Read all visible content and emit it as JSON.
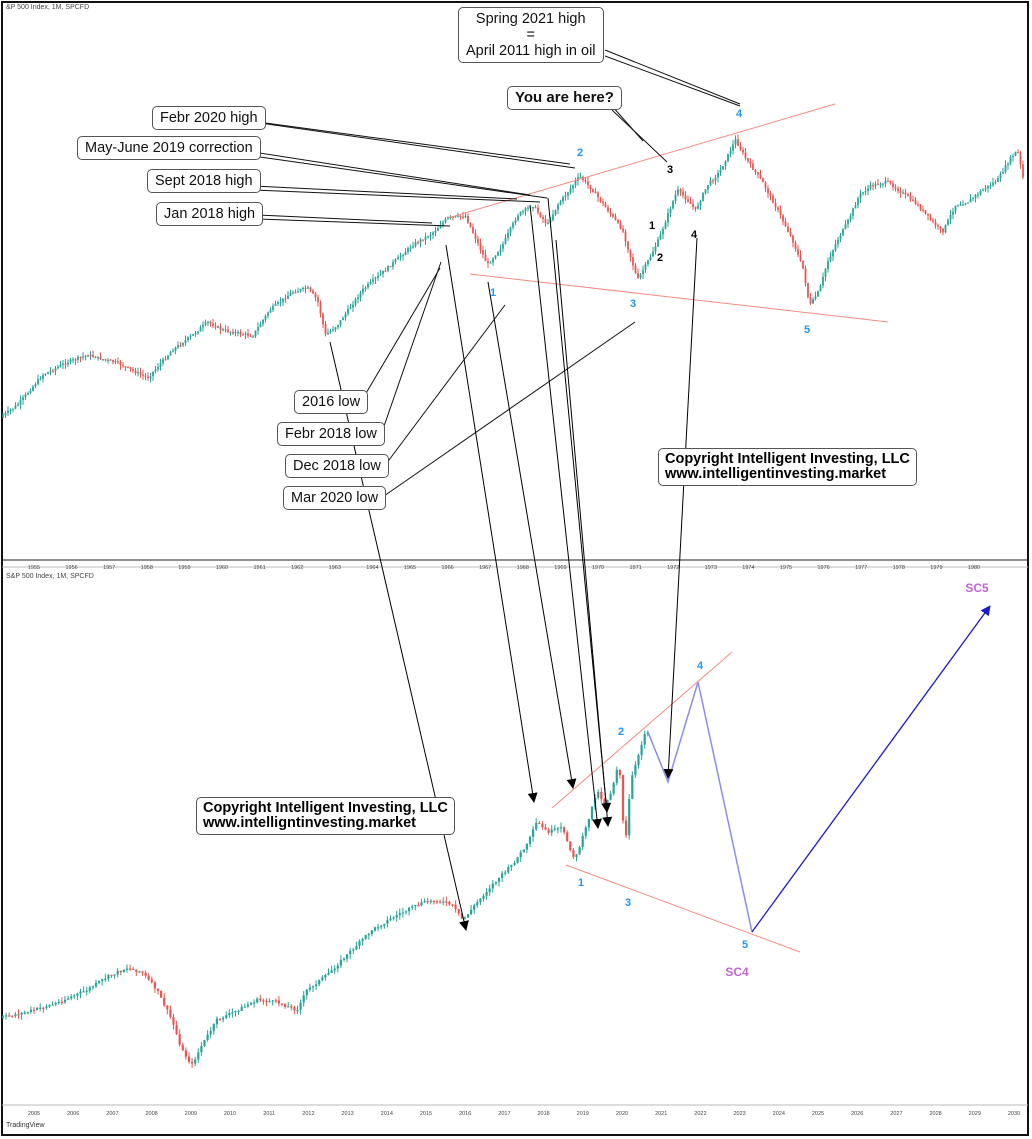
{
  "charts_header": {
    "top": "&P 500 Index, 1M, SPCFD",
    "bottom": "S&P 500 Index, 1M, SPCFD",
    "footer_logo": "TradingView"
  },
  "callouts": {
    "spring_2021_line1": "Spring 2021 high",
    "spring_2021_line2": "=",
    "spring_2021_line3": "April 2011 high in oil",
    "you_are_here": "You are here?",
    "febr_2020_high": "Febr 2020 high",
    "may_june_2019": "May-June 2019 correction",
    "sept_2018_high": "Sept 2018 high",
    "jan_2018_high": "Jan 2018 high",
    "low_2016": "2016 low",
    "febr_2018_low": "Febr 2018 low",
    "dec_2018_low": "Dec 2018 low",
    "mar_2020_low": "Mar 2020 low"
  },
  "copyright": {
    "top_line1": "Copyright Intelligent Investing, LLC",
    "top_line2": "www.intelligentinvesting.market",
    "bottom_line1": "Copyright Intelligent Investing, LLC",
    "bottom_line2": "www.intelligntinvesting.market"
  },
  "colors": {
    "up": "#26a69a",
    "down": "#ef5350",
    "trendline": "#f28b82",
    "wave_label": "#2196f3",
    "sc_label": "#c264d6",
    "projection": "#8c8cf0",
    "sc5_arrow": "#1a1acc"
  },
  "chart_data": [
    {
      "type": "candlestick",
      "title": "S&P 500 Index, 1M",
      "x_tick_labels": [
        "1955",
        "1956",
        "1957",
        "1958",
        "1959",
        "1960",
        "1961",
        "1962",
        "1963",
        "1964",
        "1965",
        "1966",
        "1967",
        "1968",
        "1969",
        "1970",
        "1971",
        "1972",
        "1973",
        "1974",
        "1975",
        "1976",
        "1977",
        "1978",
        "1979",
        "1980"
      ],
      "wave_labels": [
        {
          "label": "1",
          "date": 1966.8,
          "color": "blue"
        },
        {
          "label": "2",
          "date": 1969.0,
          "color": "blue"
        },
        {
          "label": "3",
          "date": 1970.4,
          "color": "blue"
        },
        {
          "label": "4",
          "date": 1973.0,
          "color": "blue"
        },
        {
          "label": "5",
          "date": 1974.8,
          "color": "blue"
        },
        {
          "label": "1",
          "date": 1970.8,
          "color": "black"
        },
        {
          "label": "2",
          "date": 1971.0,
          "color": "black"
        },
        {
          "label": "3",
          "date": 1971.3,
          "color": "black"
        },
        {
          "label": "4",
          "date": 1971.9,
          "color": "black"
        }
      ]
    },
    {
      "type": "candlestick",
      "title": "S&P 500 Index, 1M",
      "x_tick_labels": [
        "2005",
        "2006",
        "2007",
        "2008",
        "2009",
        "2010",
        "2011",
        "2012",
        "2013",
        "2014",
        "2015",
        "2016",
        "2017",
        "2018",
        "2019",
        "2020",
        "2021",
        "2022",
        "2023",
        "2024",
        "2025",
        "2026",
        "2027",
        "2028",
        "2029",
        "2030"
      ],
      "wave_labels": [
        {
          "label": "1",
          "date": 2018.9,
          "color": "blue"
        },
        {
          "label": "2",
          "date": 2020.1,
          "color": "blue"
        },
        {
          "label": "3",
          "date": 2020.2,
          "color": "blue"
        },
        {
          "label": "4",
          "date": 2021.9,
          "color": "blue"
        },
        {
          "label": "5",
          "date": 2023.3,
          "color": "blue"
        },
        {
          "label": "SC4",
          "date": 2023.3,
          "color": "purple"
        },
        {
          "label": "SC5",
          "date": 2029.2,
          "color": "purple"
        }
      ]
    }
  ]
}
